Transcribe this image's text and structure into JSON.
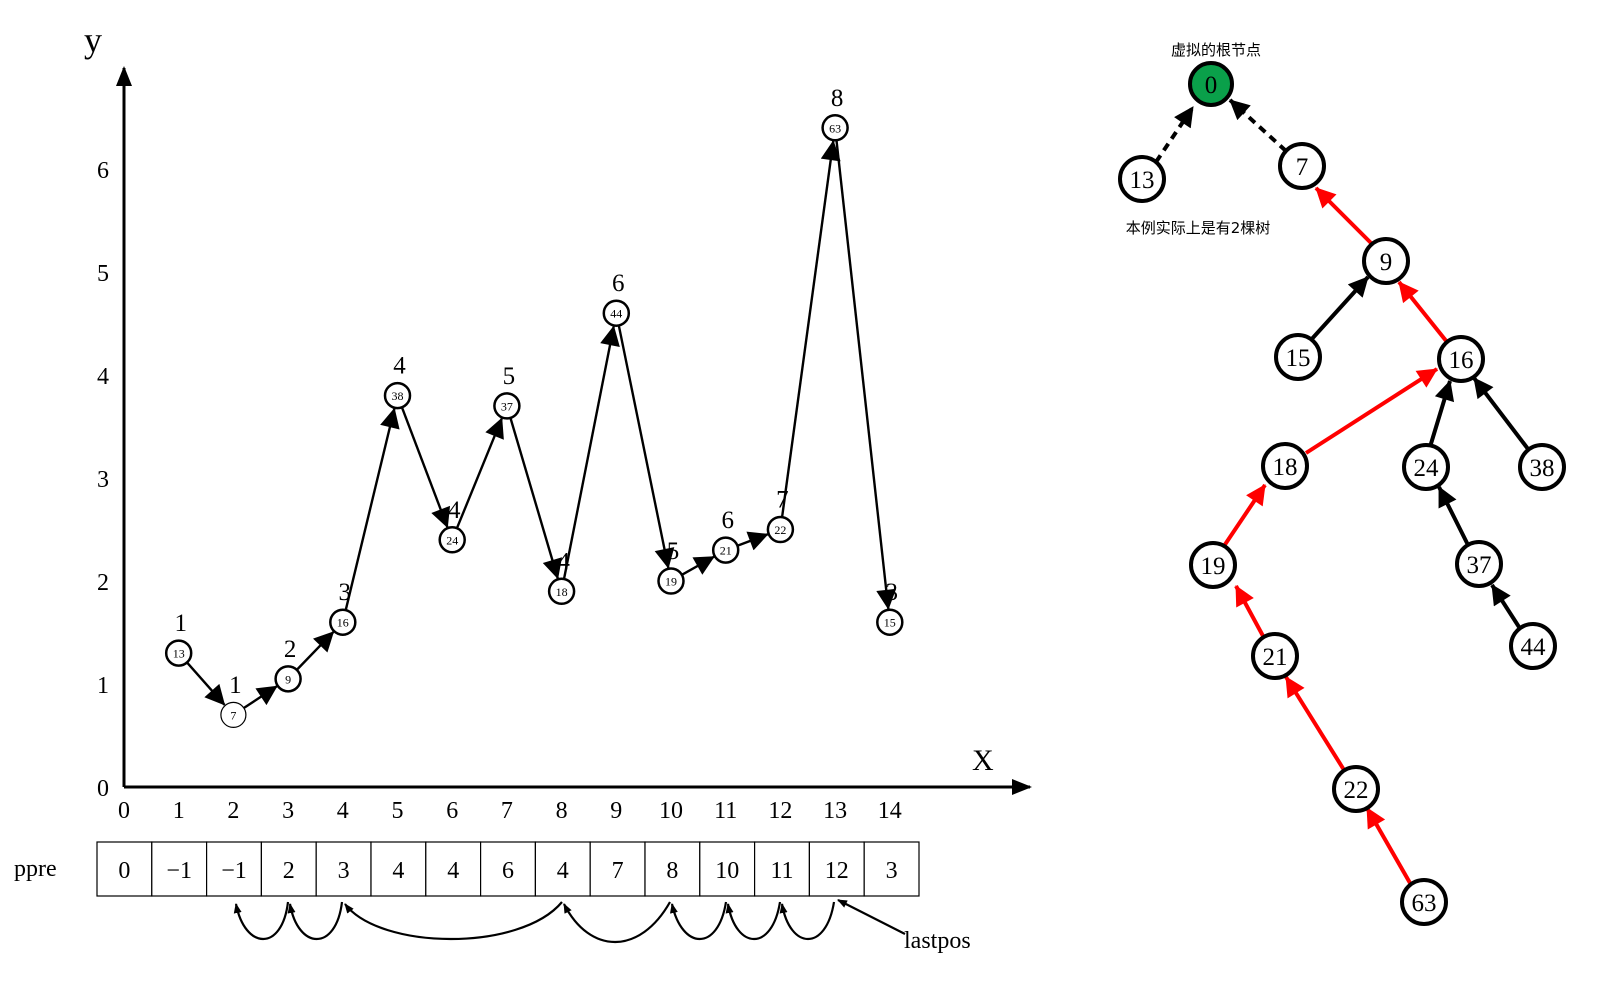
{
  "axes": {
    "y_label": "y",
    "x_label": "X",
    "x_ticks": [
      "0",
      "1",
      "2",
      "3",
      "4",
      "5",
      "6",
      "7",
      "8",
      "9",
      "10",
      "11",
      "12",
      "13",
      "14"
    ],
    "y_ticks": [
      "0",
      "1",
      "2",
      "3",
      "4",
      "5",
      "6"
    ]
  },
  "points": [
    {
      "x": 1,
      "y": 1.3,
      "label": "13",
      "dp": "1"
    },
    {
      "x": 2,
      "y": 0.7,
      "label": "7",
      "dp": "1"
    },
    {
      "x": 3,
      "y": 1.05,
      "label": "9",
      "dp": "2"
    },
    {
      "x": 4,
      "y": 1.6,
      "label": "16",
      "dp": "3"
    },
    {
      "x": 5,
      "y": 3.8,
      "label": "38",
      "dp": "4"
    },
    {
      "x": 6,
      "y": 2.4,
      "label": "24",
      "dp": "4"
    },
    {
      "x": 7,
      "y": 3.7,
      "label": "37",
      "dp": "5"
    },
    {
      "x": 8,
      "y": 1.9,
      "label": "18",
      "dp": "4"
    },
    {
      "x": 9,
      "y": 4.6,
      "label": "44",
      "dp": "6"
    },
    {
      "x": 10,
      "y": 2.0,
      "label": "19",
      "dp": "5"
    },
    {
      "x": 11,
      "y": 2.3,
      "label": "21",
      "dp": "6"
    },
    {
      "x": 12,
      "y": 2.5,
      "label": "22",
      "dp": "7"
    },
    {
      "x": 13,
      "y": 6.4,
      "label": "63",
      "dp": "8"
    },
    {
      "x": 14,
      "y": 1.6,
      "label": "15",
      "dp": "3"
    }
  ],
  "ppre": {
    "label": "ppre",
    "values": [
      "0",
      "−1",
      "−1",
      "2",
      "3",
      "4",
      "4",
      "6",
      "4",
      "7",
      "8",
      "10",
      "11",
      "12",
      "3"
    ],
    "lastpos_label": "lastpos"
  },
  "tree": {
    "root_caption": "虚拟的根节点",
    "note": "本例实际上是有2棵树",
    "root_fill": "#0aa04a",
    "red_edge_color": "#ff0000",
    "nodes": [
      "0",
      "13",
      "7",
      "9",
      "15",
      "16",
      "18",
      "24",
      "38",
      "19",
      "37",
      "21",
      "44",
      "22",
      "63"
    ]
  }
}
